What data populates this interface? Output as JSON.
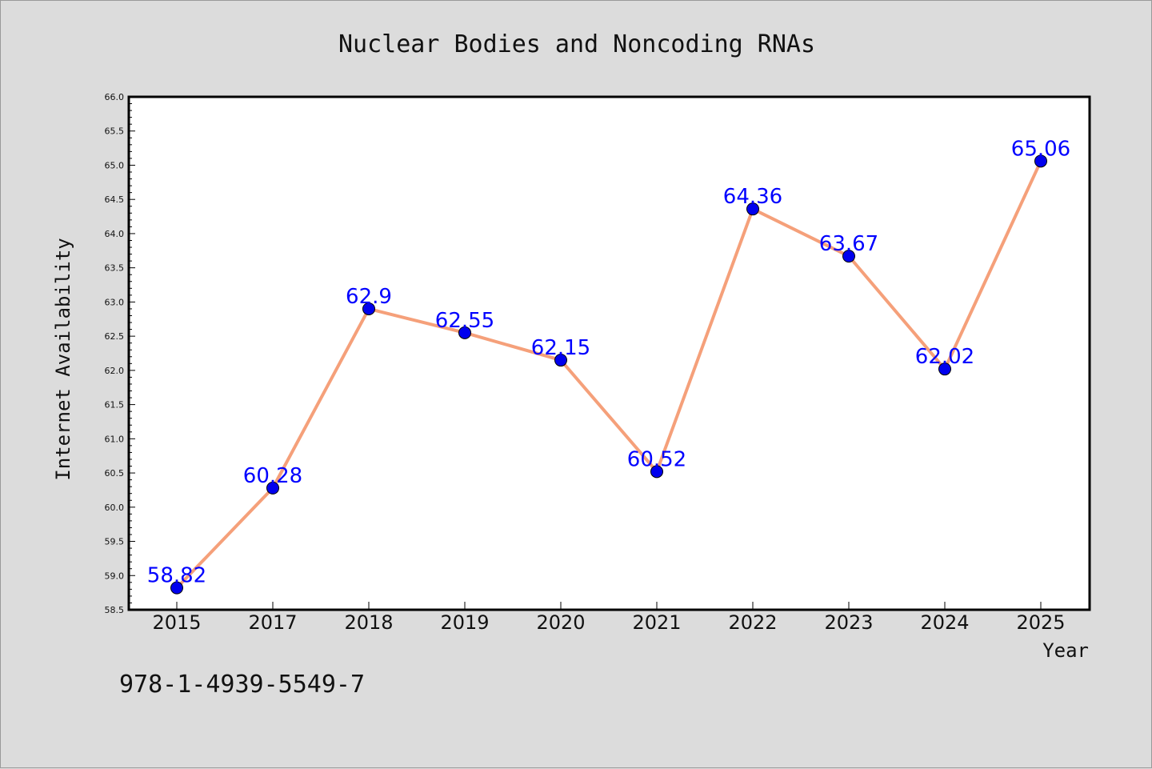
{
  "chart_data": {
    "type": "line",
    "title": "Nuclear Bodies and Noncoding RNAs",
    "xlabel": "Year",
    "ylabel": "Internet Availability",
    "categories": [
      "2015",
      "2017",
      "2018",
      "2019",
      "2020",
      "2021",
      "2022",
      "2023",
      "2024",
      "2025"
    ],
    "series": [
      {
        "values": [
          58.82,
          60.28,
          62.9,
          62.55,
          62.15,
          60.52,
          64.36,
          63.67,
          62.02,
          65.06
        ],
        "data_labels": [
          "58.82",
          "60.28",
          "62.9",
          "62.55",
          "62.15",
          "60.52",
          "64.36",
          "63.67",
          "62.02",
          "65.06"
        ],
        "line_color": "#f5a07a",
        "marker_color": "#0000ee"
      }
    ],
    "ylim": [
      58.5,
      66.0
    ],
    "yticks": [
      "58.5",
      "59.0",
      "59.5",
      "60.0",
      "60.5",
      "61.0",
      "61.5",
      "62.0",
      "62.5",
      "63.0",
      "63.5",
      "64.0",
      "64.5",
      "65.0",
      "65.5",
      "66.0"
    ],
    "grid": false,
    "legend": "none"
  },
  "footer": {
    "text": "978-1-4939-5549-7"
  }
}
